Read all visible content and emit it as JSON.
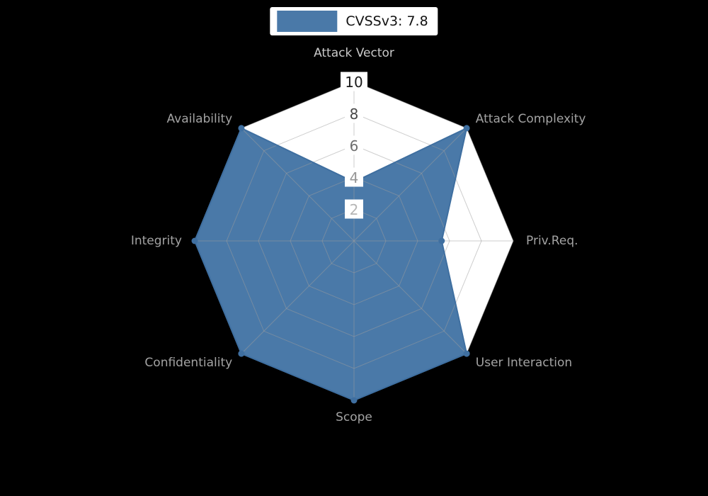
{
  "page": {
    "background": "#000000"
  },
  "legend": {
    "label": "CVSSv3: 7.8",
    "swatch_color": "#4a79a8",
    "box_color": "#ffffff",
    "text_color": "#111111"
  },
  "chart_data": {
    "type": "radar",
    "title": "CVSSv3: 7.8",
    "axes": [
      {
        "label": "Attack Vector",
        "value": 3.7
      },
      {
        "label": "Attack Complexity",
        "value": 10
      },
      {
        "label": "Priv.Req.",
        "value": 5.5
      },
      {
        "label": "User Interaction",
        "value": 10
      },
      {
        "label": "Scope",
        "value": 10
      },
      {
        "label": "Confidentiality",
        "value": 10
      },
      {
        "label": "Integrity",
        "value": 10
      },
      {
        "label": "Availability",
        "value": 10
      }
    ],
    "range": [
      0,
      10
    ],
    "ticks": [
      {
        "value": 10,
        "color": "#1a1a1a"
      },
      {
        "value": 8,
        "color": "#474747"
      },
      {
        "value": 6,
        "color": "#6e6e6e"
      },
      {
        "value": 4,
        "color": "#969696"
      },
      {
        "value": 2,
        "color": "#b5b5b5"
      }
    ],
    "grid": true,
    "legend_position": "top-center",
    "colors": {
      "fill": "#4a79a8",
      "outline": "#3f6fa0",
      "grid_line": "#9e9e9e",
      "disc": "#ffffff",
      "axis_label": "#a3a3a3",
      "axis_label_primary": "#c9c9c9",
      "tick_box": "#ffffff"
    }
  }
}
